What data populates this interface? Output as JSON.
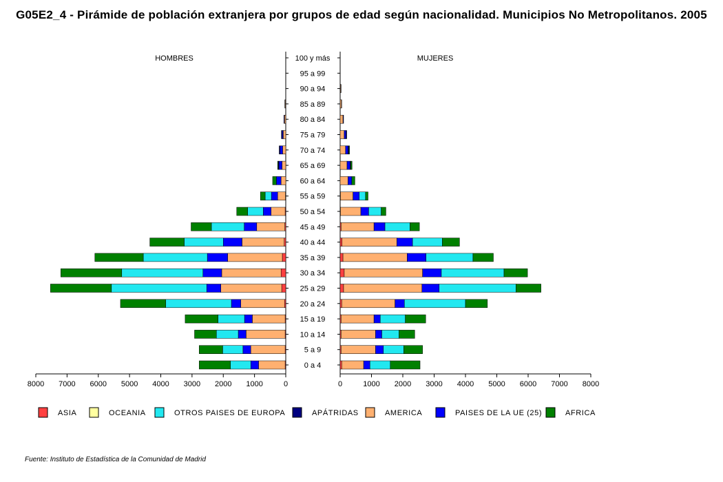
{
  "title": "G05E2_4 - Pirámide de población extranjera por grupos de edad según nacionalidad.  Municipios No Metropolitanos. 2005",
  "source": "Fuente: Instituto de Estadística de la Comunidad de Madrid",
  "chart_data": {
    "type": "bar",
    "orientation": "horizontal",
    "stacked": true,
    "layout": "population-pyramid",
    "left_label": "HOMBRES",
    "right_label": "MUJERES",
    "categories": [
      "0 a 4",
      "5 a 9",
      "10 a 14",
      "15 a 19",
      "20 a 24",
      "25 a 29",
      "30 a 34",
      "35 a 39",
      "40 a 44",
      "45 a 49",
      "50 a 54",
      "55 a 59",
      "60 a 64",
      "65 a 69",
      "70 a 74",
      "75 a 79",
      "80 a 84",
      "85 a 89",
      "90 a 94",
      "95 a 99",
      "100 y más"
    ],
    "xlim": [
      0,
      8000
    ],
    "x_ticks": [
      0,
      1000,
      2000,
      3000,
      4000,
      5000,
      6000,
      7000,
      8000
    ],
    "series": [
      {
        "name": "ASIA",
        "color": "#ff4040",
        "hombres": [
          20,
          20,
          20,
          20,
          40,
          130,
          150,
          110,
          50,
          30,
          20,
          10,
          0,
          0,
          0,
          0,
          0,
          0,
          0,
          0,
          0
        ],
        "mujeres": [
          50,
          30,
          30,
          30,
          50,
          110,
          130,
          90,
          60,
          30,
          10,
          10,
          0,
          0,
          0,
          0,
          0,
          0,
          0,
          0,
          0
        ]
      },
      {
        "name": "OCEANIA",
        "color": "#ffffa0",
        "hombres": [
          0,
          0,
          0,
          0,
          0,
          0,
          0,
          0,
          0,
          0,
          0,
          0,
          0,
          0,
          0,
          0,
          0,
          0,
          0,
          0,
          0
        ],
        "mujeres": [
          0,
          0,
          0,
          0,
          0,
          0,
          0,
          0,
          0,
          0,
          0,
          0,
          0,
          0,
          0,
          0,
          0,
          0,
          0,
          0,
          0
        ]
      },
      {
        "name": "OTROS PAISES DE EUROPA",
        "color": "#22e8f0",
        "hombres": [
          650,
          650,
          700,
          850,
          2100,
          3050,
          2600,
          2050,
          1250,
          1050,
          500,
          200,
          0,
          0,
          0,
          0,
          0,
          0,
          0,
          0,
          0
        ],
        "mujeres": [
          650,
          650,
          550,
          800,
          1950,
          2450,
          2000,
          1500,
          950,
          800,
          400,
          200,
          0,
          0,
          0,
          0,
          0,
          0,
          0,
          0,
          0
        ],
        "hombres_right": [
          650,
          650,
          700,
          850,
          2100,
          3050,
          2600,
          2050,
          1250,
          1050,
          500,
          200,
          0,
          0,
          0,
          0,
          0,
          0,
          0,
          0,
          0
        ]
      },
      {
        "name": "APÁTRIDAS",
        "color": "#000080",
        "hombres": [
          0,
          0,
          0,
          0,
          0,
          0,
          0,
          0,
          0,
          0,
          0,
          0,
          0,
          20,
          30,
          30,
          20,
          10,
          0,
          0,
          0
        ],
        "mujeres": [
          0,
          0,
          0,
          0,
          0,
          0,
          0,
          0,
          0,
          0,
          0,
          0,
          0,
          20,
          30,
          30,
          20,
          10,
          10,
          0,
          0
        ]
      },
      {
        "name": "AMERICA",
        "color": "#ffb070",
        "hombres": [
          850,
          1100,
          1250,
          1050,
          1400,
          1950,
          1900,
          1750,
          1350,
          900,
          450,
          250,
          150,
          120,
          100,
          80,
          40,
          20,
          0,
          0,
          0
        ],
        "mujeres": [
          700,
          1100,
          1100,
          1050,
          1700,
          2500,
          2500,
          2050,
          1750,
          1050,
          650,
          400,
          250,
          220,
          170,
          130,
          90,
          40,
          20,
          0,
          0
        ]
      },
      {
        "name": "PAISES DE LA UE (25)",
        "color": "#0000ff",
        "hombres": [
          250,
          250,
          250,
          250,
          300,
          450,
          600,
          650,
          600,
          400,
          250,
          200,
          150,
          100,
          80,
          30,
          0,
          0,
          0,
          0,
          0
        ],
        "mujeres": [
          200,
          250,
          200,
          200,
          300,
          550,
          600,
          600,
          500,
          350,
          250,
          200,
          120,
          100,
          80,
          50,
          0,
          0,
          0,
          0,
          0
        ]
      },
      {
        "name": "AFRICA",
        "color": "#008000",
        "hombres": [
          1000,
          750,
          700,
          1050,
          1450,
          1950,
          1950,
          1550,
          1100,
          650,
          350,
          150,
          120,
          20,
          0,
          0,
          0,
          0,
          0,
          0,
          0
        ],
        "mujeres": [
          950,
          600,
          500,
          650,
          700,
          800,
          750,
          650,
          550,
          300,
          150,
          80,
          100,
          40,
          20,
          0,
          0,
          0,
          0,
          0,
          0
        ]
      }
    ]
  }
}
